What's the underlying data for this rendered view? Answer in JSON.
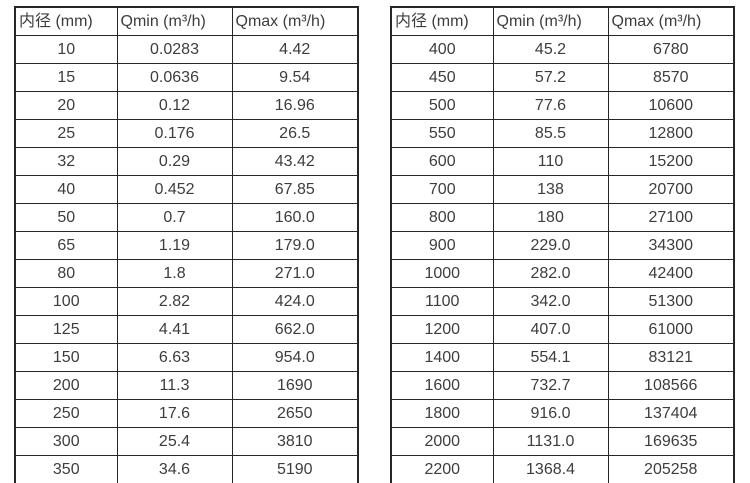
{
  "page": {
    "background_color": "#ffffff",
    "text_color": "#3d3d3d",
    "border_color": "#262626"
  },
  "chart_data": [
    {
      "type": "table",
      "title": "",
      "headers": [
        "内径 (mm)",
        "Qmin (m³/h)",
        "Qmax (m³/h)"
      ],
      "rows": [
        [
          "10",
          "0.0283",
          "4.42"
        ],
        [
          "15",
          "0.0636",
          "9.54"
        ],
        [
          "20",
          "0.12",
          "16.96"
        ],
        [
          "25",
          "0.176",
          "26.5"
        ],
        [
          "32",
          "0.29",
          "43.42"
        ],
        [
          "40",
          "0.452",
          "67.85"
        ],
        [
          "50",
          "0.7",
          "160.0"
        ],
        [
          "65",
          "1.19",
          "179.0"
        ],
        [
          "80",
          "1.8",
          "271.0"
        ],
        [
          "100",
          "2.82",
          "424.0"
        ],
        [
          "125",
          "4.41",
          "662.0"
        ],
        [
          "150",
          "6.63",
          "954.0"
        ],
        [
          "200",
          "11.3",
          "1690"
        ],
        [
          "250",
          "17.6",
          "2650"
        ],
        [
          "300",
          "25.4",
          "3810"
        ],
        [
          "350",
          "34.6",
          "5190"
        ]
      ]
    },
    {
      "type": "table",
      "title": "",
      "headers": [
        "内径 (mm)",
        "Qmin (m³/h)",
        "Qmax (m³/h)"
      ],
      "rows": [
        [
          "400",
          "45.2",
          "6780"
        ],
        [
          "450",
          "57.2",
          "8570"
        ],
        [
          "500",
          "77.6",
          "10600"
        ],
        [
          "550",
          "85.5",
          "12800"
        ],
        [
          "600",
          "110",
          "15200"
        ],
        [
          "700",
          "138",
          "20700"
        ],
        [
          "800",
          "180",
          "27100"
        ],
        [
          "900",
          "229.0",
          "34300"
        ],
        [
          "1000",
          "282.0",
          "42400"
        ],
        [
          "1100",
          "342.0",
          "51300"
        ],
        [
          "1200",
          "407.0",
          "61000"
        ],
        [
          "1400",
          "554.1",
          "83121"
        ],
        [
          "1600",
          "732.7",
          "108566"
        ],
        [
          "1800",
          "916.0",
          "137404"
        ],
        [
          "2000",
          "1131.0",
          "169635"
        ],
        [
          "2200",
          "1368.4",
          "205258"
        ]
      ]
    }
  ]
}
